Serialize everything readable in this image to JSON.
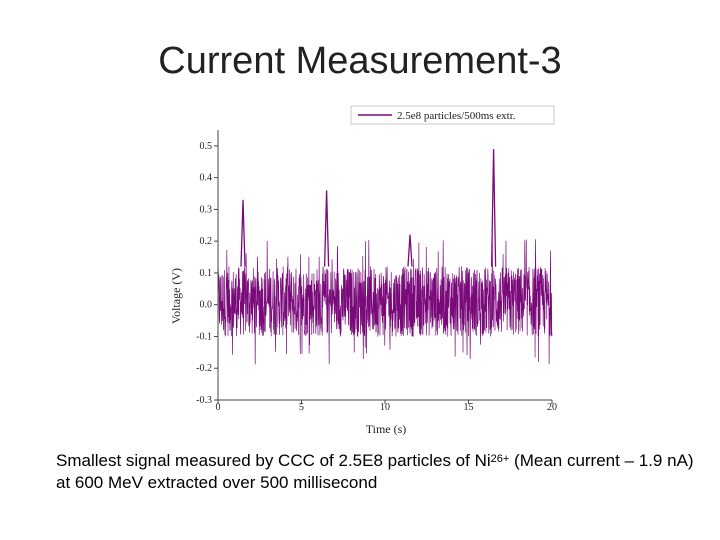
{
  "slide": {
    "title": "Current Measurement-3"
  },
  "caption": {
    "line1_prefix": "Smallest signal measured by  CCC of 2.5E8 particles of Ni",
    "line1_superscript": "26+",
    "line1_suffix": "  (Mean current – 1.9 nA)",
    "line2": "at 600 MeV extracted over 500 millisecond"
  },
  "chart_data": {
    "type": "line",
    "xlabel": "Time (s)",
    "ylabel": "Voltage (V)",
    "xlim": [
      0,
      20
    ],
    "ylim": [
      -0.3,
      0.55
    ],
    "x_ticks": [
      0,
      5,
      10,
      15,
      20
    ],
    "y_ticks": [
      -0.3,
      -0.2,
      -0.1,
      0.0,
      0.1,
      0.2,
      0.3,
      0.4,
      0.5
    ],
    "x_tick_labels": [
      "0",
      "5",
      "10",
      "15",
      "20"
    ],
    "y_tick_labels": [
      "-0.3",
      "-0.2",
      "-0.1",
      "0.0",
      "0.1",
      "0.2",
      "0.3",
      "0.4",
      "0.5"
    ],
    "grid": false,
    "legend_position": "top-right",
    "series": [
      {
        "name": "2.5e8 particles/500ms extr.",
        "color": "#7a0a7a",
        "noise_band": [
          -0.1,
          0.12
        ],
        "spikes": [
          {
            "x": 1.5,
            "y": 0.33
          },
          {
            "x": 6.5,
            "y": 0.36
          },
          {
            "x": 11.5,
            "y": 0.22
          },
          {
            "x": 16.5,
            "y": 0.49
          }
        ]
      }
    ]
  }
}
